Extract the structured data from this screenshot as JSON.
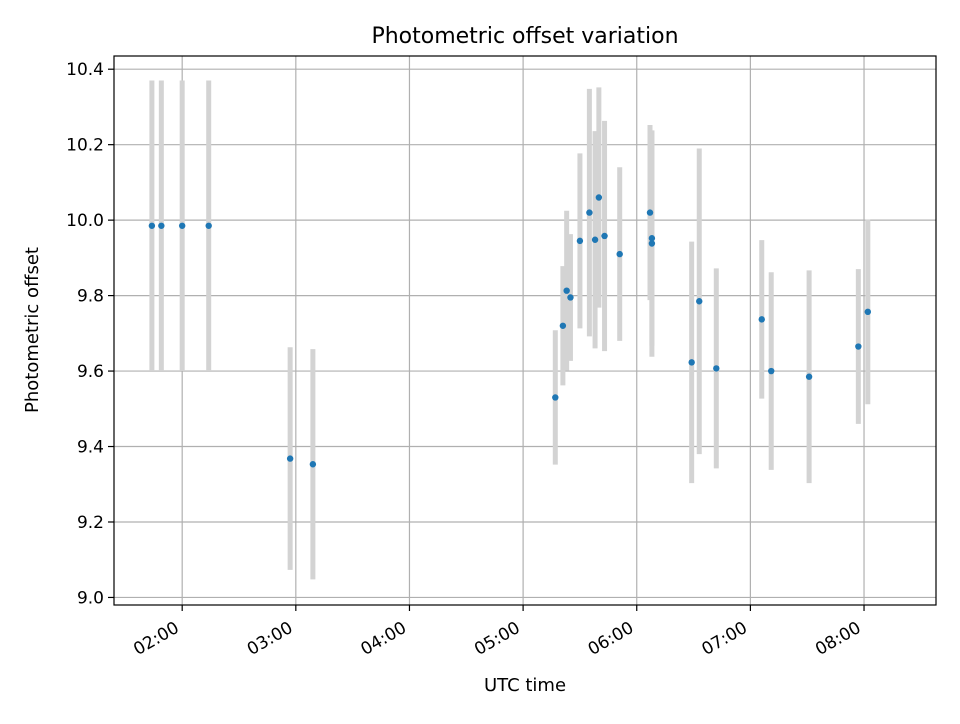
{
  "chart_data": {
    "type": "scatter",
    "title": "Photometric offset variation",
    "xlabel": "UTC time",
    "ylabel": "Photometric offset",
    "x_tick_labels": [
      "02:00",
      "03:00",
      "04:00",
      "05:00",
      "06:00",
      "07:00",
      "08:00"
    ],
    "y_tick_labels": [
      "9.0",
      "9.2",
      "9.4",
      "9.6",
      "9.8",
      "10.0",
      "10.2",
      "10.4"
    ],
    "xlim": [
      "01:24",
      "08:38"
    ],
    "ylim": [
      8.98,
      10.435
    ],
    "grid": true,
    "legend": "none",
    "colors": {
      "point": "#1f77b4",
      "errorbar": "#d3d3d3",
      "grid": "#b0b0b0"
    },
    "series": [
      {
        "x": [
          "01:44",
          "01:49",
          "02:00",
          "02:14",
          "02:57",
          "03:09",
          "05:17",
          "05:21",
          "05:23",
          "05:25",
          "05:30",
          "05:35",
          "05:38",
          "05:40",
          "05:43",
          "05:51",
          "06:07",
          "06:08",
          "06:08",
          "06:29",
          "06:33",
          "06:42",
          "07:06",
          "07:11",
          "07:31",
          "07:57",
          "08:02"
        ],
        "y": [
          9.985,
          9.985,
          9.985,
          9.985,
          9.368,
          9.353,
          9.53,
          9.72,
          9.813,
          9.795,
          9.945,
          10.02,
          9.948,
          10.06,
          9.958,
          9.91,
          10.02,
          9.952,
          9.938,
          9.623,
          9.785,
          9.607,
          9.737,
          9.6,
          9.585,
          9.665,
          9.757
        ],
        "yerr": [
          0.385,
          0.385,
          0.385,
          0.385,
          0.295,
          0.305,
          0.178,
          0.158,
          0.212,
          0.168,
          0.232,
          0.328,
          0.288,
          0.292,
          0.305,
          0.23,
          0.232,
          0.285,
          0.3,
          0.32,
          0.405,
          0.265,
          0.21,
          0.262,
          0.282,
          0.205,
          0.245
        ]
      }
    ]
  }
}
